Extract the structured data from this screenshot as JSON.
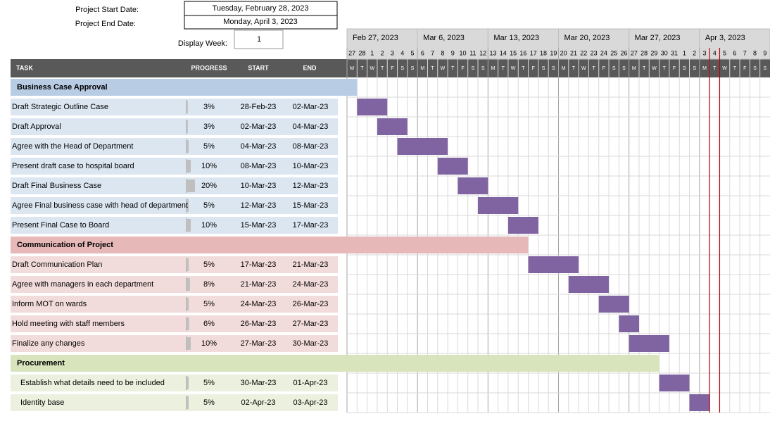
{
  "header": {
    "start_label": "Project Start Date:",
    "start_value": "Tuesday, February 28, 2023",
    "end_label": "Project End Date:",
    "end_value": "Monday, April 3, 2023",
    "week_label": "Display Week:",
    "week_value": 1
  },
  "columns": [
    "TASK",
    "PROGRESS",
    "START",
    "END"
  ],
  "weeks": [
    "Feb 27, 2023",
    "Mar 6, 2023",
    "Mar 13, 2023",
    "Mar 20, 2023",
    "Mar 27, 2023",
    "Apr 3, 2023"
  ],
  "days": [
    27,
    28,
    1,
    2,
    3,
    4,
    5,
    6,
    7,
    8,
    9,
    10,
    11,
    12,
    13,
    14,
    15,
    16,
    17,
    18,
    19,
    20,
    21,
    22,
    23,
    24,
    25,
    26,
    27,
    28,
    29,
    30,
    31,
    1,
    2,
    3,
    4,
    5,
    6,
    7,
    8,
    9
  ],
  "weekdays": [
    "M",
    "T",
    "W",
    "T",
    "F",
    "S",
    "S",
    "M",
    "T",
    "W",
    "T",
    "F",
    "S",
    "S",
    "M",
    "T",
    "W",
    "T",
    "F",
    "S",
    "S",
    "M",
    "T",
    "W",
    "T",
    "F",
    "S",
    "S",
    "M",
    "T",
    "W",
    "T",
    "F",
    "S",
    "S",
    "M",
    "T",
    "W",
    "T",
    "F",
    "S",
    "S"
  ],
  "sections": [
    {
      "name": "Business Case Approval",
      "header_color": "#b8cce4",
      "row_color": "#dce6f1",
      "tasks": [
        {
          "task": "Draft Strategic Outline Case",
          "progress": 3,
          "progress_label": "3%",
          "start": "28-Feb-23",
          "end": "02-Mar-23"
        },
        {
          "task": "Draft Approval",
          "progress": 3,
          "progress_label": "3%",
          "start": "02-Mar-23",
          "end": "04-Mar-23"
        },
        {
          "task": "Agree with the Head of Department",
          "progress": 5,
          "progress_label": "5%",
          "start": "04-Mar-23",
          "end": "08-Mar-23"
        },
        {
          "task": "Present draft case to hospital board",
          "progress": 10,
          "progress_label": "10%",
          "start": "08-Mar-23",
          "end": "10-Mar-23"
        },
        {
          "task": "Draft Final Business Case",
          "progress": 20,
          "progress_label": "20%",
          "start": "10-Mar-23",
          "end": "12-Mar-23"
        },
        {
          "task": "Agree Final business case with head of department",
          "progress": 5,
          "progress_label": "5%",
          "start": "12-Mar-23",
          "end": "15-Mar-23"
        },
        {
          "task": "Present Final Case to Board",
          "progress": 10,
          "progress_label": "10%",
          "start": "15-Mar-23",
          "end": "17-Mar-23"
        }
      ]
    },
    {
      "name": "Communication of Project",
      "header_color": "#e6b8b7",
      "row_color": "#f2dcdb",
      "tasks": [
        {
          "task": "Draft Communication Plan",
          "progress": 5,
          "progress_label": "5%",
          "start": "17-Mar-23",
          "end": "21-Mar-23"
        },
        {
          "task": "Agree with managers in each department",
          "progress": 8,
          "progress_label": "8%",
          "start": "21-Mar-23",
          "end": "24-Mar-23"
        },
        {
          "task": "Inform MOT on wards",
          "progress": 5,
          "progress_label": "5%",
          "start": "24-Mar-23",
          "end": "26-Mar-23"
        },
        {
          "task": "Hold meeting with staff members",
          "progress": 6,
          "progress_label": "6%",
          "start": "26-Mar-23",
          "end": "27-Mar-23"
        },
        {
          "task": "Finalize any changes",
          "progress": 10,
          "progress_label": "10%",
          "start": "27-Mar-23",
          "end": "30-Mar-23"
        }
      ]
    },
    {
      "name": "Procurement",
      "header_color": "#d8e4bc",
      "row_color": "#ebf1de",
      "tasks": [
        {
          "task": "Establish what details need to be included",
          "progress": 5,
          "progress_label": "5%",
          "start": "30-Mar-23",
          "end": "01-Apr-23"
        },
        {
          "task": "Identity base",
          "progress": 5,
          "progress_label": "5%",
          "start": "02-Apr-23",
          "end": "03-Apr-23"
        }
      ]
    }
  ],
  "bar_color": "#8064a2"
}
